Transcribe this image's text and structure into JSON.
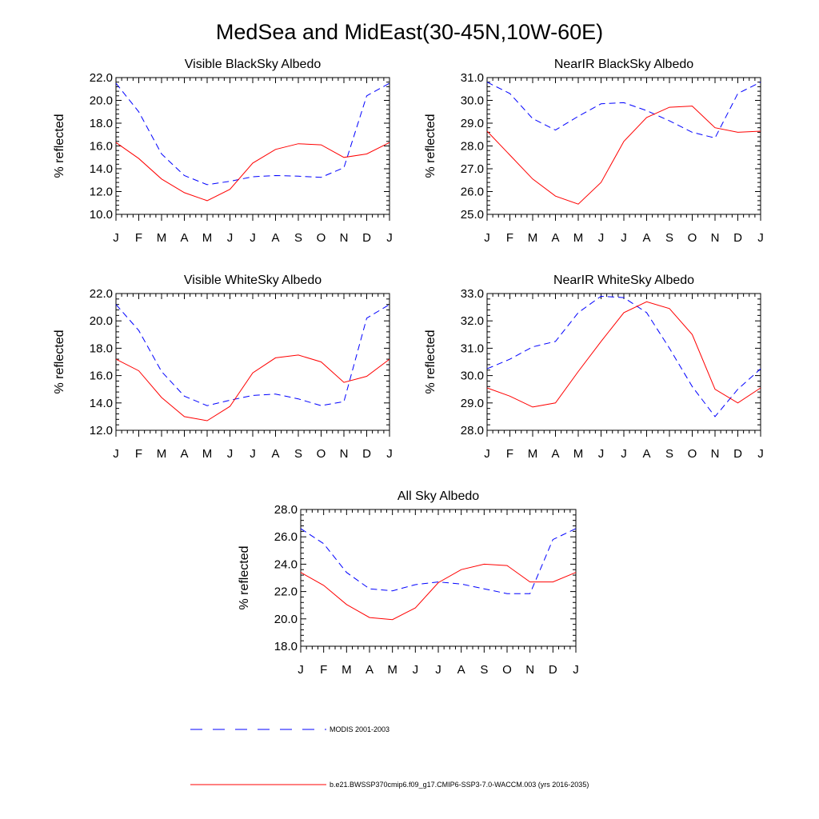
{
  "figure": {
    "title": "MedSea and MidEast(30-45N,10W-60E)"
  },
  "legend": {
    "entries": [
      {
        "label": "MODIS 2001-2003",
        "color": "#0000ff",
        "dash": "dashed"
      },
      {
        "label": "b.e21.BWSSP370cmip6.f09_g17.CMIP6-SSP3-7.0-WACCM.003 (yrs 2016-2035)",
        "color": "#ff0000",
        "dash": "solid"
      }
    ]
  },
  "chart_data": [
    {
      "type": "line",
      "title": "Visible BlackSky Albedo",
      "ylabel": "% reflected",
      "categories": [
        "J",
        "F",
        "M",
        "A",
        "M",
        "J",
        "J",
        "A",
        "S",
        "O",
        "N",
        "D",
        "J"
      ],
      "ylim": [
        10.0,
        22.0
      ],
      "yticks": [
        "10.0",
        "12.0",
        "14.0",
        "16.0",
        "18.0",
        "20.0",
        "22.0"
      ],
      "series": [
        {
          "name": "MODIS 2001-2003",
          "color": "#0000ff",
          "dash": "dashed",
          "values": [
            21.5,
            19.0,
            15.3,
            13.4,
            12.6,
            12.9,
            13.3,
            13.4,
            13.35,
            13.25,
            14.1,
            20.4,
            21.5
          ]
        },
        {
          "name": "b.e21.BWSSP370cmip6.f09_g17.CMIP6-SSP3-7.0-WACCM.003 (yrs 2016-2035)",
          "color": "#ff0000",
          "dash": "solid",
          "values": [
            16.3,
            14.9,
            13.1,
            11.9,
            11.2,
            12.2,
            14.5,
            15.7,
            16.2,
            16.1,
            15.0,
            15.3,
            16.3
          ]
        }
      ]
    },
    {
      "type": "line",
      "title": "NearIR BlackSky Albedo",
      "ylabel": "% reflected",
      "categories": [
        "J",
        "F",
        "M",
        "A",
        "M",
        "J",
        "J",
        "A",
        "S",
        "O",
        "N",
        "D",
        "J"
      ],
      "ylim": [
        25.0,
        31.0
      ],
      "yticks": [
        "25.0",
        "26.0",
        "27.0",
        "28.0",
        "29.0",
        "30.0",
        "31.0"
      ],
      "series": [
        {
          "name": "MODIS 2001-2003",
          "color": "#0000ff",
          "dash": "dashed",
          "values": [
            30.8,
            30.3,
            29.2,
            28.7,
            29.3,
            29.85,
            29.9,
            29.55,
            29.1,
            28.6,
            28.35,
            30.3,
            30.8
          ]
        },
        {
          "name": "b.e21.BWSSP370cmip6.f09_g17.CMIP6-SSP3-7.0-WACCM.003 (yrs 2016-2035)",
          "color": "#ff0000",
          "dash": "solid",
          "values": [
            28.65,
            27.6,
            26.55,
            25.8,
            25.45,
            26.4,
            28.2,
            29.25,
            29.7,
            29.75,
            28.8,
            28.6,
            28.65
          ]
        }
      ]
    },
    {
      "type": "line",
      "title": "Visible WhiteSky Albedo",
      "ylabel": "% reflected",
      "categories": [
        "J",
        "F",
        "M",
        "A",
        "M",
        "J",
        "J",
        "A",
        "S",
        "O",
        "N",
        "D",
        "J"
      ],
      "ylim": [
        12.0,
        22.0
      ],
      "yticks": [
        "12.0",
        "14.0",
        "16.0",
        "18.0",
        "20.0",
        "22.0"
      ],
      "series": [
        {
          "name": "MODIS 2001-2003",
          "color": "#0000ff",
          "dash": "dashed",
          "values": [
            21.2,
            19.3,
            16.3,
            14.5,
            13.8,
            14.2,
            14.55,
            14.65,
            14.3,
            13.8,
            14.1,
            20.2,
            21.2
          ]
        },
        {
          "name": "b.e21.BWSSP370cmip6.f09_g17.CMIP6-SSP3-7.0-WACCM.003 (yrs 2016-2035)",
          "color": "#ff0000",
          "dash": "solid",
          "values": [
            17.2,
            16.35,
            14.4,
            13.0,
            12.7,
            13.75,
            16.2,
            17.3,
            17.5,
            17.0,
            15.5,
            15.95,
            17.2
          ]
        }
      ]
    },
    {
      "type": "line",
      "title": "NearIR WhiteSky Albedo",
      "ylabel": "% reflected",
      "categories": [
        "J",
        "F",
        "M",
        "A",
        "M",
        "J",
        "J",
        "A",
        "S",
        "O",
        "N",
        "D",
        "J"
      ],
      "ylim": [
        28.0,
        33.0
      ],
      "yticks": [
        "28.0",
        "29.0",
        "30.0",
        "31.0",
        "32.0",
        "33.0"
      ],
      "series": [
        {
          "name": "MODIS 2001-2003",
          "color": "#0000ff",
          "dash": "dashed",
          "values": [
            30.25,
            30.6,
            31.05,
            31.25,
            32.3,
            32.9,
            32.85,
            32.3,
            31.0,
            29.6,
            28.5,
            29.5,
            30.25
          ]
        },
        {
          "name": "b.e21.BWSSP370cmip6.f09_g17.CMIP6-SSP3-7.0-WACCM.003 (yrs 2016-2035)",
          "color": "#ff0000",
          "dash": "solid",
          "values": [
            29.55,
            29.25,
            28.85,
            29.0,
            30.15,
            31.25,
            32.3,
            32.7,
            32.45,
            31.5,
            29.5,
            29.0,
            29.55
          ]
        }
      ]
    },
    {
      "type": "line",
      "title": "All Sky Albedo",
      "ylabel": "% reflected",
      "categories": [
        "J",
        "F",
        "M",
        "A",
        "M",
        "J",
        "J",
        "A",
        "S",
        "O",
        "N",
        "D",
        "J"
      ],
      "ylim": [
        18.0,
        28.0
      ],
      "yticks": [
        "18.0",
        "20.0",
        "22.0",
        "24.0",
        "26.0",
        "28.0"
      ],
      "series": [
        {
          "name": "MODIS 2001-2003",
          "color": "#0000ff",
          "dash": "dashed",
          "values": [
            26.6,
            25.5,
            23.4,
            22.2,
            22.05,
            22.5,
            22.7,
            22.55,
            22.2,
            21.85,
            21.85,
            25.8,
            26.6
          ]
        },
        {
          "name": "b.e21.BWSSP370cmip6.f09_g17.CMIP6-SSP3-7.0-WACCM.003 (yrs 2016-2035)",
          "color": "#ff0000",
          "dash": "solid",
          "values": [
            23.4,
            22.45,
            21.05,
            20.1,
            19.95,
            20.8,
            22.65,
            23.6,
            24.0,
            23.9,
            22.7,
            22.7,
            23.4
          ]
        }
      ]
    }
  ]
}
